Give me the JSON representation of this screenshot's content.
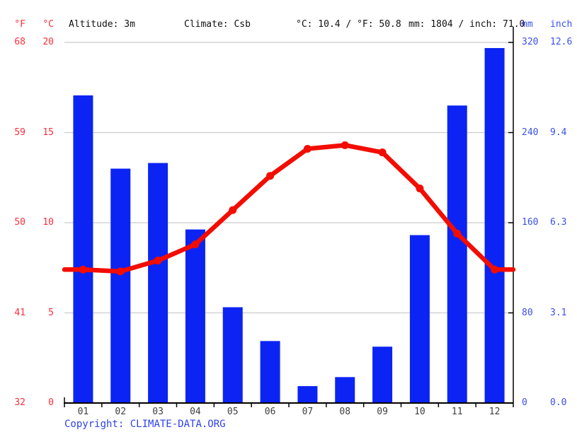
{
  "header": {
    "f_label": "°F",
    "c_label": "°C",
    "altitude": "Altitude: 3m",
    "climate": "Climate: Csb",
    "avg_temp": "°C: 10.4 / °F: 50.8",
    "annual_precip": "mm: 1804 / inch: 71.0",
    "mm_label": "mm",
    "inch_label": "inch"
  },
  "axes": {
    "left_f": [
      "68",
      "59",
      "50",
      "41",
      "32"
    ],
    "left_c": [
      "20",
      "15",
      "10",
      "5",
      "0"
    ],
    "right_mm": [
      "320",
      "240",
      "160",
      "80",
      "0"
    ],
    "right_inch": [
      "12.6",
      "9.4",
      "6.3",
      "3.1",
      "0.0"
    ]
  },
  "footer": {
    "copyright_label": "Copyright:",
    "link_text": "CLIMATE-DATA.ORG"
  },
  "colors": {
    "bar_blue": "#0b24f3",
    "line_red": "#f20d00",
    "label_red": "#fb2d3a",
    "label_blue": "#3a50ee",
    "gridline": "#cccccc",
    "axis_black": "#000000",
    "month_text": "#404040",
    "copyright_blue": "#2e43e6"
  },
  "chart_data": {
    "type": "bar+line combo climograph",
    "categories": [
      "01",
      "02",
      "03",
      "04",
      "05",
      "06",
      "07",
      "08",
      "09",
      "10",
      "11",
      "12"
    ],
    "series": [
      {
        "name": "precipitation_mm",
        "type": "bar",
        "values": [
          273,
          208,
          213,
          154,
          85,
          55,
          15,
          23,
          50,
          149,
          264,
          315
        ]
      },
      {
        "name": "temperature_c",
        "type": "line",
        "values": [
          7.4,
          7.3,
          7.9,
          8.8,
          10.7,
          12.6,
          14.1,
          14.3,
          13.9,
          11.9,
          9.4,
          7.4
        ]
      }
    ],
    "left_axis": {
      "units": [
        "°F",
        "°C"
      ],
      "f_ticks": [
        68,
        59,
        50,
        41,
        32
      ],
      "c_ticks": [
        20,
        15,
        10,
        5,
        0
      ],
      "c_range": [
        0,
        20
      ]
    },
    "right_axis": {
      "units": [
        "mm",
        "inch"
      ],
      "mm_ticks": [
        320,
        240,
        160,
        80,
        0
      ],
      "inch_ticks": [
        12.6,
        9.4,
        6.3,
        3.1,
        0.0
      ],
      "mm_range": [
        0,
        320
      ]
    },
    "grid": true,
    "legend": "none",
    "summary": {
      "avg_temp_c": 10.4,
      "avg_temp_f": 50.8,
      "annual_precip_mm": 1804,
      "annual_precip_inch": 71.0,
      "altitude": "3m",
      "climate_class": "Csb"
    }
  }
}
